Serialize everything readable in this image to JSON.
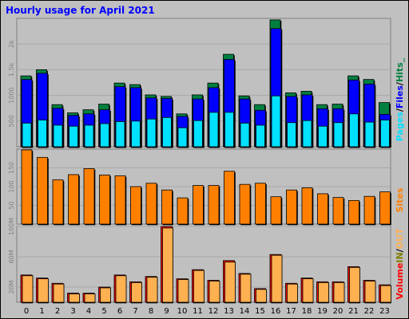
{
  "title": "Hourly usage for April 2021",
  "colors": {
    "hits": "#008040",
    "files": "#0000ff",
    "pages": "#00e0ff",
    "sites": "#ff8000",
    "kbytes_in": "#ff0000",
    "kbytes_out": "#ffb050",
    "background": "#c0c0c0",
    "title": "#0000ff"
  },
  "legends": {
    "top": [
      {
        "text": "Pages",
        "color": "#00e0ff"
      },
      {
        "text": "/",
        "color": "#000000"
      },
      {
        "text": "Files",
        "color": "#0000ff"
      },
      {
        "text": "/",
        "color": "#000000"
      },
      {
        "text": "Hits_",
        "color": "#008040"
      }
    ],
    "middle": [
      {
        "text": "Sites",
        "color": "#ff8000"
      }
    ],
    "bottom": [
      {
        "text": "Volume",
        "color": "#ff0000"
      },
      {
        "text": "IN",
        "color": "#808000"
      },
      {
        "text": "/",
        "color": "#000000"
      },
      {
        "text": "OUT",
        "color": "#ffb050"
      }
    ]
  },
  "chart_data": [
    {
      "type": "bar",
      "panel": "hits-files-pages",
      "categories": [
        "0",
        "1",
        "2",
        "3",
        "4",
        "5",
        "6",
        "7",
        "8",
        "9",
        "10",
        "11",
        "12",
        "13",
        "14",
        "15",
        "16",
        "17",
        "18",
        "19",
        "20",
        "21",
        "22",
        "23"
      ],
      "ylim": [
        0,
        2500
      ],
      "ytick_values": [
        500,
        1000,
        1500,
        2000
      ],
      "ytick_labels": [
        "500",
        "1000",
        "1.5k",
        "2k"
      ],
      "series": [
        {
          "name": "Hits",
          "values": [
            1380,
            1500,
            820,
            660,
            720,
            830,
            1240,
            1210,
            1010,
            980,
            640,
            1010,
            1240,
            1800,
            990,
            820,
            2470,
            1050,
            1080,
            820,
            830,
            1380,
            1310,
            860
          ]
        },
        {
          "name": "Files",
          "values": [
            1310,
            1430,
            750,
            610,
            640,
            720,
            1170,
            1150,
            950,
            940,
            590,
            930,
            1150,
            1700,
            930,
            710,
            2300,
            980,
            1010,
            740,
            740,
            1300,
            1220,
            630
          ]
        },
        {
          "name": "Pages",
          "values": [
            460,
            520,
            420,
            400,
            420,
            450,
            490,
            500,
            540,
            570,
            370,
            510,
            670,
            670,
            460,
            420,
            990,
            470,
            510,
            400,
            470,
            640,
            480,
            520
          ]
        }
      ]
    },
    {
      "type": "bar",
      "panel": "sites",
      "categories": [
        "0",
        "1",
        "2",
        "3",
        "4",
        "5",
        "6",
        "7",
        "8",
        "9",
        "10",
        "11",
        "12",
        "13",
        "14",
        "15",
        "16",
        "17",
        "18",
        "19",
        "20",
        "21",
        "22",
        "23"
      ],
      "ylim": [
        0,
        200
      ],
      "ytick_values": [
        50,
        100,
        150
      ],
      "ytick_labels": [
        "50",
        "100",
        "150"
      ],
      "series": [
        {
          "name": "Sites",
          "values": [
            198,
            178,
            118,
            132,
            148,
            131,
            129,
            100,
            109,
            91,
            70,
            103,
            103,
            141,
            106,
            109,
            73,
            91,
            97,
            81,
            71,
            63,
            74,
            86
          ]
        }
      ]
    },
    {
      "type": "bar",
      "panel": "volume",
      "categories": [
        "0",
        "1",
        "2",
        "3",
        "4",
        "5",
        "6",
        "7",
        "8",
        "9",
        "10",
        "11",
        "12",
        "13",
        "14",
        "15",
        "16",
        "17",
        "18",
        "19",
        "20",
        "21",
        "22",
        "23"
      ],
      "ylim": [
        0,
        100
      ],
      "ytick_values": [
        20,
        60,
        100
      ],
      "ytick_labels": [
        "20M",
        "60M",
        "100M"
      ],
      "series": [
        {
          "name": "IN",
          "values": [
            36,
            32,
            25,
            12,
            12,
            20,
            36,
            27,
            34,
            100,
            31,
            43,
            29,
            55,
            38,
            18,
            63,
            25,
            32,
            27,
            27,
            47,
            29,
            23
          ]
        },
        {
          "name": "OUT",
          "values": [
            35,
            31,
            24,
            11,
            11,
            19,
            35,
            26,
            33,
            98,
            30,
            42,
            28,
            53,
            37,
            17,
            62,
            24,
            31,
            26,
            26,
            46,
            28,
            22
          ]
        }
      ]
    }
  ]
}
